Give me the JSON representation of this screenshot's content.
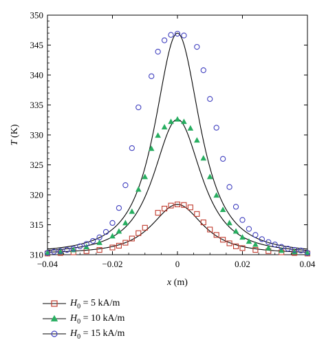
{
  "chart_data": {
    "type": "line",
    "title": "",
    "xlabel": "x (m)",
    "ylabel": "T (K)",
    "xlim": [
      -0.04,
      0.04
    ],
    "ylim": [
      310,
      350
    ],
    "xticks": [
      -0.04,
      -0.02,
      0,
      0.02,
      0.04
    ],
    "xtick_labels": [
      "−0.04",
      "−0.02",
      "0",
      "0.02",
      "0.04"
    ],
    "yticks": [
      310,
      315,
      320,
      325,
      330,
      335,
      340,
      345,
      350
    ],
    "ytick_labels": [
      "310",
      "315",
      "320",
      "325",
      "330",
      "335",
      "340",
      "345",
      "350"
    ],
    "legend_position": "below",
    "series": [
      {
        "name": "H0 = 5 kA/m",
        "legend": {
          "symbol": "H",
          "sub": "0",
          "rest": " = 5 kA/m"
        },
        "color": "#c0392b",
        "marker": "square",
        "curve_peak": 318.4,
        "curve_width": 0.0115,
        "points": [
          [
            -0.04,
            310.2
          ],
          [
            -0.036,
            310.3
          ],
          [
            -0.032,
            310.4
          ],
          [
            -0.028,
            310.6
          ],
          [
            -0.024,
            310.8
          ],
          [
            -0.02,
            311.2
          ],
          [
            -0.018,
            311.5
          ],
          [
            -0.016,
            312.0
          ],
          [
            -0.014,
            312.7
          ],
          [
            -0.012,
            313.6
          ],
          [
            -0.01,
            314.5
          ],
          [
            -0.006,
            317.0
          ],
          [
            -0.004,
            317.7
          ],
          [
            -0.002,
            318.2
          ],
          [
            0,
            318.4
          ],
          [
            0.002,
            318.3
          ],
          [
            0.004,
            317.9
          ],
          [
            0.006,
            316.8
          ],
          [
            0.008,
            315.4
          ],
          [
            0.01,
            314.2
          ],
          [
            0.012,
            313.3
          ],
          [
            0.014,
            312.5
          ],
          [
            0.016,
            311.9
          ],
          [
            0.018,
            311.4
          ],
          [
            0.02,
            311.1
          ],
          [
            0.024,
            310.8
          ],
          [
            0.028,
            310.6
          ],
          [
            0.032,
            310.4
          ],
          [
            0.036,
            310.3
          ],
          [
            0.04,
            310.2
          ]
        ]
      },
      {
        "name": "H0 = 10 kA/m",
        "legend": {
          "symbol": "H",
          "sub": "0",
          "rest": " = 10 kA/m"
        },
        "color": "#27ae60",
        "marker": "triangle",
        "curve_peak": 332.6,
        "curve_width": 0.0108,
        "points": [
          [
            -0.04,
            310.3
          ],
          [
            -0.036,
            310.5
          ],
          [
            -0.032,
            310.8
          ],
          [
            -0.028,
            311.3
          ],
          [
            -0.024,
            312.0
          ],
          [
            -0.02,
            313.1
          ],
          [
            -0.018,
            313.9
          ],
          [
            -0.016,
            315.3
          ],
          [
            -0.014,
            317.2
          ],
          [
            -0.012,
            320.9
          ],
          [
            -0.01,
            323.0
          ],
          [
            -0.008,
            327.7
          ],
          [
            -0.006,
            329.9
          ],
          [
            -0.004,
            331.3
          ],
          [
            -0.002,
            332.2
          ],
          [
            0,
            332.6
          ],
          [
            0.002,
            332.2
          ],
          [
            0.004,
            331.1
          ],
          [
            0.006,
            329.1
          ],
          [
            0.008,
            326.1
          ],
          [
            0.01,
            323.0
          ],
          [
            0.012,
            319.9
          ],
          [
            0.014,
            317.5
          ],
          [
            0.016,
            315.3
          ],
          [
            0.018,
            313.9
          ],
          [
            0.02,
            312.9
          ],
          [
            0.022,
            312.2
          ],
          [
            0.024,
            311.7
          ],
          [
            0.028,
            311.1
          ],
          [
            0.032,
            310.7
          ],
          [
            0.036,
            310.5
          ],
          [
            0.04,
            310.3
          ]
        ]
      },
      {
        "name": "H0 = 15 kA/m",
        "legend": {
          "symbol": "H",
          "sub": "0",
          "rest": " = 15 kA/m"
        },
        "color": "#3f3fbf",
        "marker": "circle",
        "curve_peak": 347.0,
        "curve_width": 0.0102,
        "points": [
          [
            -0.04,
            310.3
          ],
          [
            -0.038,
            310.5
          ],
          [
            -0.036,
            310.6
          ],
          [
            -0.034,
            310.8
          ],
          [
            -0.032,
            311.0
          ],
          [
            -0.03,
            311.4
          ],
          [
            -0.028,
            311.8
          ],
          [
            -0.026,
            312.3
          ],
          [
            -0.024,
            312.9
          ],
          [
            -0.022,
            313.8
          ],
          [
            -0.02,
            315.3
          ],
          [
            -0.018,
            317.8
          ],
          [
            -0.016,
            321.6
          ],
          [
            -0.014,
            327.8
          ],
          [
            -0.012,
            334.6
          ],
          [
            -0.008,
            339.8
          ],
          [
            -0.006,
            343.9
          ],
          [
            -0.004,
            345.8
          ],
          [
            -0.002,
            346.7
          ],
          [
            0,
            346.9
          ],
          [
            0.002,
            346.6
          ],
          [
            0.006,
            344.7
          ],
          [
            0.008,
            340.8
          ],
          [
            0.01,
            336.0
          ],
          [
            0.012,
            331.2
          ],
          [
            0.014,
            326.0
          ],
          [
            0.016,
            321.3
          ],
          [
            0.018,
            318.0
          ],
          [
            0.02,
            315.8
          ],
          [
            0.022,
            314.3
          ],
          [
            0.024,
            313.3
          ],
          [
            0.026,
            312.6
          ],
          [
            0.028,
            312.1
          ],
          [
            0.03,
            311.7
          ],
          [
            0.032,
            311.3
          ],
          [
            0.034,
            311.0
          ],
          [
            0.036,
            310.8
          ],
          [
            0.038,
            310.7
          ],
          [
            0.04,
            310.3
          ]
        ]
      }
    ]
  }
}
